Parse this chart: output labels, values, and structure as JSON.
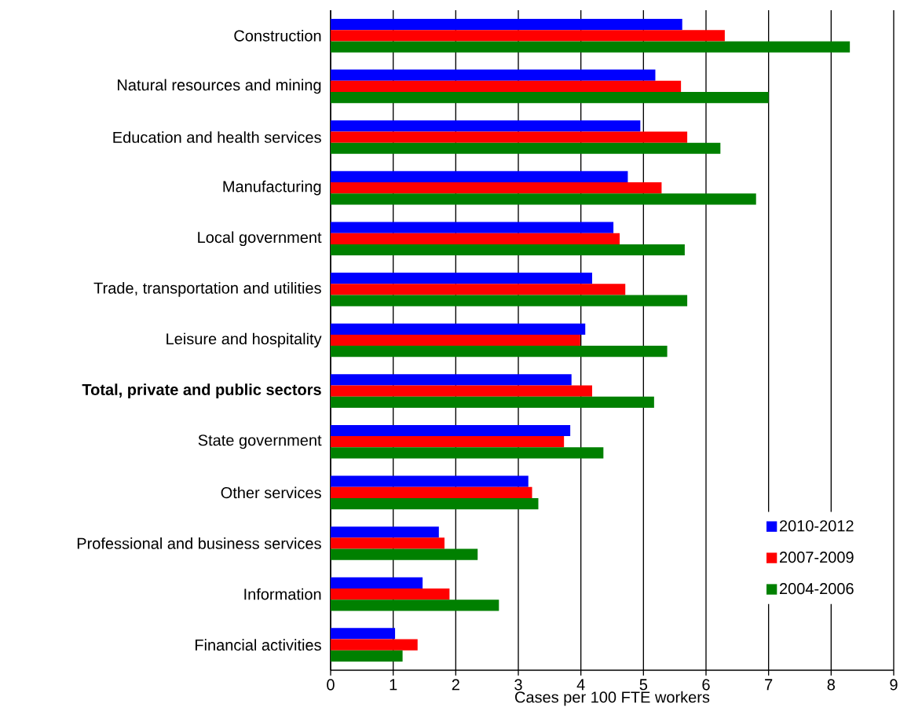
{
  "chart_data": {
    "type": "bar",
    "orientation": "horizontal",
    "categories": [
      "Construction",
      "Natural resources and mining",
      "Education and health services",
      "Manufacturing",
      "Local government",
      "Trade, transportation and utilities",
      "Leisure and hospitality",
      "**Total, private and public sectors**",
      "State government",
      "Other services",
      "Professional and business services",
      "Information",
      "Financial activities"
    ],
    "series": [
      {
        "name": "2010-2012",
        "color": "#0000ff",
        "values": [
          5.62,
          5.19,
          4.95,
          4.75,
          4.52,
          4.18,
          4.07,
          3.85,
          3.83,
          3.16,
          1.73,
          1.47,
          1.03
        ]
      },
      {
        "name": "2007-2009",
        "color": "#ff0000",
        "values": [
          6.3,
          5.6,
          5.7,
          5.29,
          4.62,
          4.71,
          3.99,
          4.18,
          3.73,
          3.22,
          1.82,
          1.9,
          1.39
        ]
      },
      {
        "name": "2004-2006",
        "color": "#008000",
        "values": [
          8.3,
          7.0,
          6.23,
          6.8,
          5.66,
          5.7,
          5.38,
          5.17,
          4.36,
          3.32,
          2.35,
          2.69,
          1.15
        ]
      }
    ],
    "xlabel": "Cases per 100 FTE workers",
    "xlim": [
      0,
      9
    ],
    "xticks": [
      0,
      1,
      2,
      3,
      4,
      5,
      6,
      7,
      8,
      9
    ],
    "grid": "x",
    "legend": "bottom right"
  }
}
